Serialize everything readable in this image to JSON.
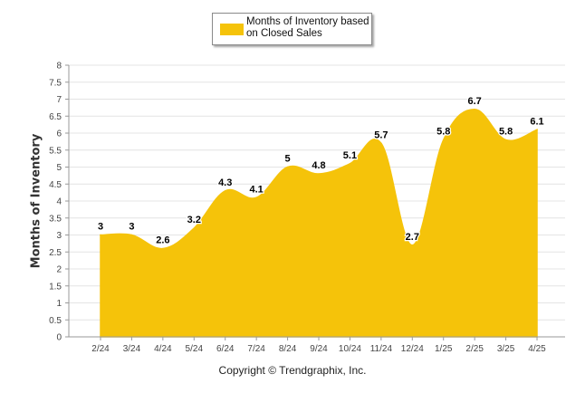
{
  "chart_data": {
    "type": "area",
    "categories": [
      "2/24",
      "3/24",
      "4/24",
      "5/24",
      "6/24",
      "7/24",
      "8/24",
      "9/24",
      "10/24",
      "11/24",
      "12/24",
      "1/25",
      "2/25",
      "3/25",
      "4/25"
    ],
    "series": [
      {
        "name": "Months of Inventory based on Closed Sales",
        "values": [
          3,
          3,
          2.6,
          3.2,
          4.3,
          4.1,
          5,
          4.8,
          5.1,
          5.7,
          2.7,
          5.8,
          6.7,
          5.8,
          6.1
        ],
        "labels": [
          "3",
          "3",
          "2.6",
          "3.2",
          "4.3",
          "4.1",
          "5",
          "4.8",
          "5.1",
          "5.7",
          "2.7",
          "5.8",
          "6.7",
          "5.8",
          "6.1"
        ]
      }
    ],
    "ylabel": "Months of Inventory",
    "xlabel": "",
    "ylim": [
      0,
      8
    ],
    "yticks": [
      "0",
      "0.5",
      "1",
      "1.5",
      "2",
      "2.5",
      "3",
      "3.5",
      "4",
      "4.5",
      "5",
      "5.5",
      "6",
      "6.5",
      "7",
      "7.5",
      "8"
    ],
    "grid": true,
    "legend_position": "top-center",
    "color": "#F5C30A"
  },
  "legend": {
    "label": "Months of Inventory based on Closed Sales"
  },
  "footer": {
    "copyright": "Copyright © Trendgraphix, Inc."
  }
}
